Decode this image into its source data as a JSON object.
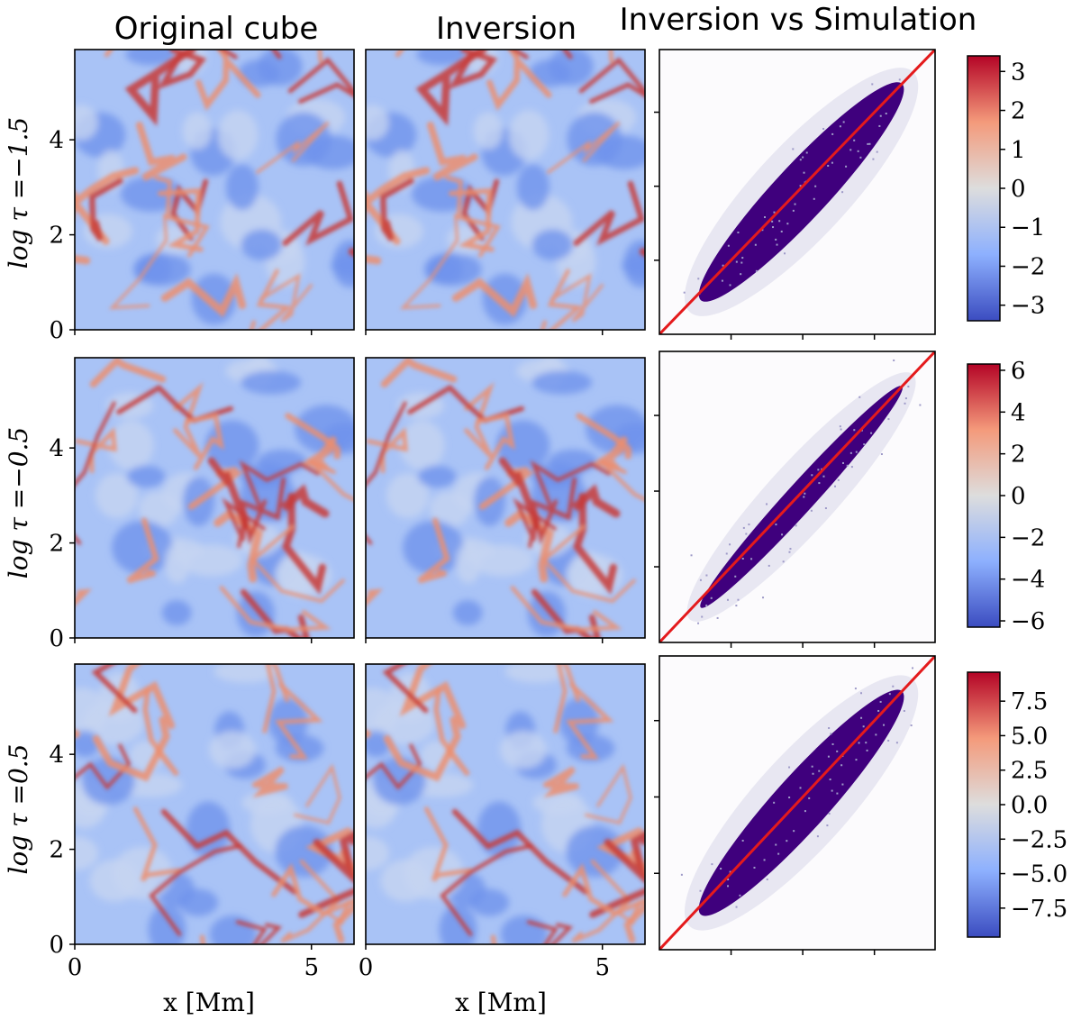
{
  "chart_data": {
    "type": "heatmap",
    "column_titles": [
      "Original cube",
      "Inversion",
      "Inversion vs Simulation"
    ],
    "row_labels": [
      "log τ =−1.5",
      "log τ =−0.5",
      "log τ =0.5"
    ],
    "xlabel": "x [Mm]",
    "x_ticks": [
      "0",
      "5"
    ],
    "y_ticks": [
      "0",
      "2",
      "4"
    ],
    "map_range_mm": [
      0,
      5.9
    ],
    "colormap": {
      "low": "#3b4cc0",
      "mid": "#dddddd",
      "high": "#b40426"
    },
    "scatter_color": "#3f007d",
    "diagonal_color": "#e41a1c",
    "panels": [
      {
        "row": 0,
        "colorbar_ticks": [
          "3",
          "2",
          "1",
          "0",
          "−1",
          "−2",
          "−3"
        ],
        "colorbar_values": [
          3,
          2,
          1,
          0,
          -1,
          -2,
          -3
        ],
        "vmin": -3.4,
        "vmax": 3.4
      },
      {
        "row": 1,
        "colorbar_ticks": [
          "6",
          "4",
          "2",
          "0",
          "−2",
          "−4",
          "−6"
        ],
        "colorbar_values": [
          6,
          4,
          2,
          0,
          -2,
          -4,
          -6
        ],
        "vmin": -6.3,
        "vmax": 6.3
      },
      {
        "row": 2,
        "colorbar_ticks": [
          "7.5",
          "5.0",
          "2.5",
          "0.0",
          "−2.5",
          "−5.0",
          "−7.5"
        ],
        "colorbar_values": [
          7.5,
          5.0,
          2.5,
          0.0,
          -2.5,
          -5.0,
          -7.5
        ],
        "vmin": -9.6,
        "vmax": 9.6
      }
    ]
  }
}
